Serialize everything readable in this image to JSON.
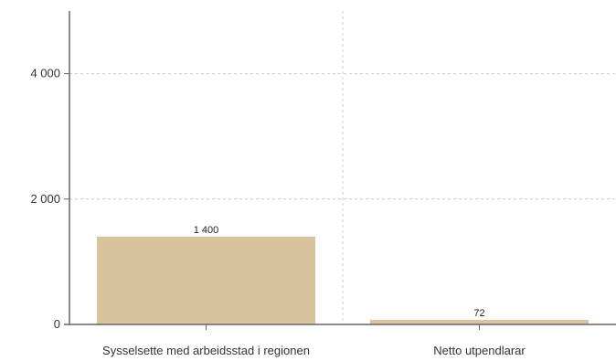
{
  "chart_data": {
    "type": "bar",
    "categories": [
      "Sysselsette med arbeidsstad i regionen",
      "Netto utpendlarar"
    ],
    "values": [
      1400,
      72
    ],
    "value_labels": [
      "1 400",
      "72"
    ],
    "title": "",
    "xlabel": "",
    "ylabel": "",
    "ylim": [
      0,
      5000
    ],
    "yticks": [
      0,
      2000,
      4000
    ],
    "ytick_labels": [
      "0",
      "2 000",
      "4 000"
    ],
    "grid": true,
    "legend": "none",
    "colors": {
      "bar": "#d9c39c",
      "axis": "#666666",
      "grid": "#cccccc"
    }
  }
}
